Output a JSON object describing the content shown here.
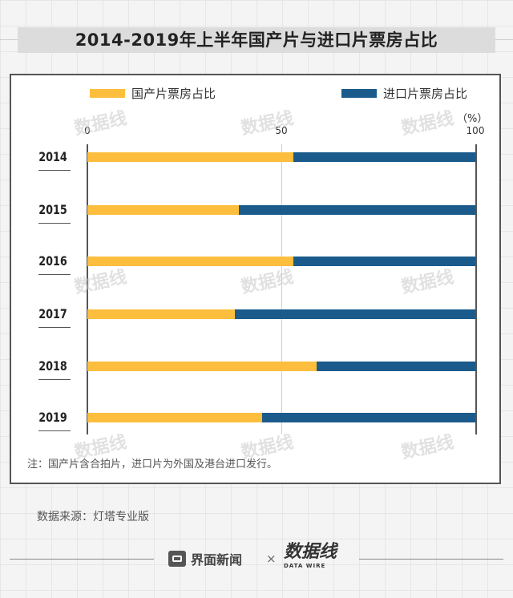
{
  "header": {
    "title": "2014-2019年上半年国产片与进口片票房占比"
  },
  "legend": {
    "domestic": "国产片票房占比",
    "imported": "进口片票房占比"
  },
  "colors": {
    "domestic": "#FDBE3E",
    "imported": "#1A5B8C"
  },
  "axis": {
    "unit": "（%）",
    "ticks": [
      "0",
      "50",
      "100"
    ]
  },
  "chart_data": {
    "type": "bar",
    "orientation": "horizontal",
    "stacked": true,
    "categories": [
      "2014",
      "2015",
      "2016",
      "2017",
      "2018",
      "2019"
    ],
    "series": [
      {
        "name": "国产片票房占比",
        "values": [
          53,
          39,
          53,
          38,
          59,
          45
        ]
      },
      {
        "name": "进口片票房占比",
        "values": [
          47,
          61,
          47,
          62,
          41,
          55
        ]
      }
    ],
    "xlim": [
      0,
      100
    ],
    "grid": true,
    "legend_position": "top"
  },
  "note": "注：国产片含合拍片，进口片为外国及港台进口发行。",
  "source": "数据来源：灯塔专业版",
  "footer": {
    "brand": "界面新闻",
    "times": "×",
    "logo_main": "数据线",
    "logo_sub": "DATA WIRE"
  },
  "watermark": "数据线"
}
